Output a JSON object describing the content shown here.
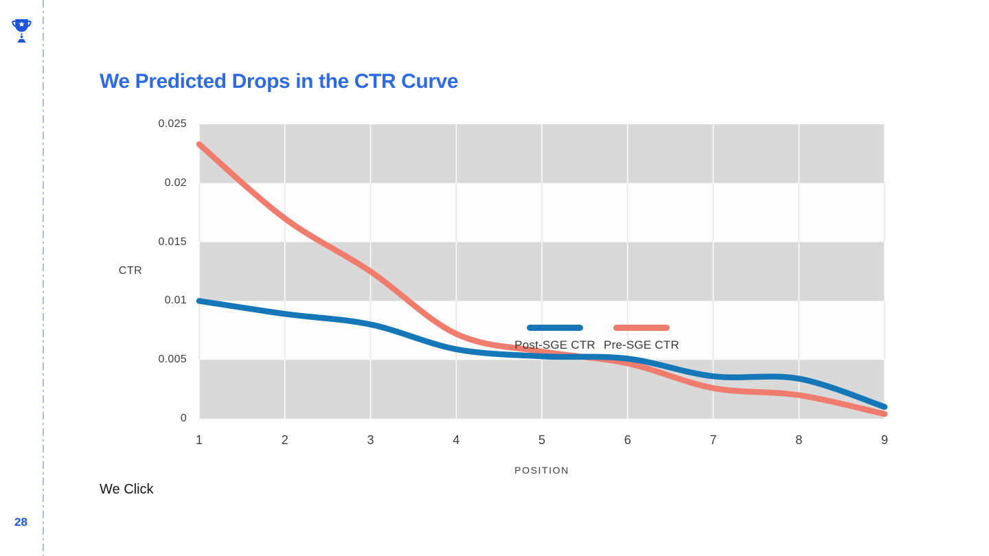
{
  "slide": {
    "title": "We Predicted Drops in the CTR Curve",
    "footer_text": "We Click",
    "page_number": "28",
    "accent_color": "#2e6ae4",
    "logo_icon": "trophy-icon",
    "left_rule_color": "#a4bce9"
  },
  "chart_data": {
    "type": "line",
    "x": [
      1,
      2,
      3,
      4,
      5,
      6,
      7,
      8,
      9
    ],
    "series": [
      {
        "name": "Post-SGE CTR",
        "color": "#1577b7",
        "values": [
          0.01,
          0.0089,
          0.008,
          0.0059,
          0.0053,
          0.0051,
          0.0036,
          0.0034,
          0.001
        ]
      },
      {
        "name": "Pre-SGE CTR",
        "color": "#f07c6e",
        "values": [
          0.0233,
          0.017,
          0.0125,
          0.0072,
          0.0057,
          0.0047,
          0.0026,
          0.002,
          0.0004
        ]
      }
    ],
    "title": "",
    "xlabel": "POSITION",
    "ylabel": "CTR",
    "ylim": [
      0,
      0.025
    ],
    "xlim": [
      1,
      9
    ],
    "yticks": [
      0,
      0.005,
      0.01,
      0.015,
      0.02,
      0.025
    ],
    "ytick_labels": [
      "0",
      "0.005",
      "0.01",
      "0.015",
      "0.02",
      "0.025"
    ],
    "grid": "vertical-only",
    "legend_position": "top-right-inside",
    "style": {
      "band_gray": "#d9d9d9",
      "band_white": "#fdfdfd",
      "gridline_on_gray": "#ffffff",
      "gridline_on_white": "#e4e4e4",
      "line_width": 8.5
    }
  }
}
